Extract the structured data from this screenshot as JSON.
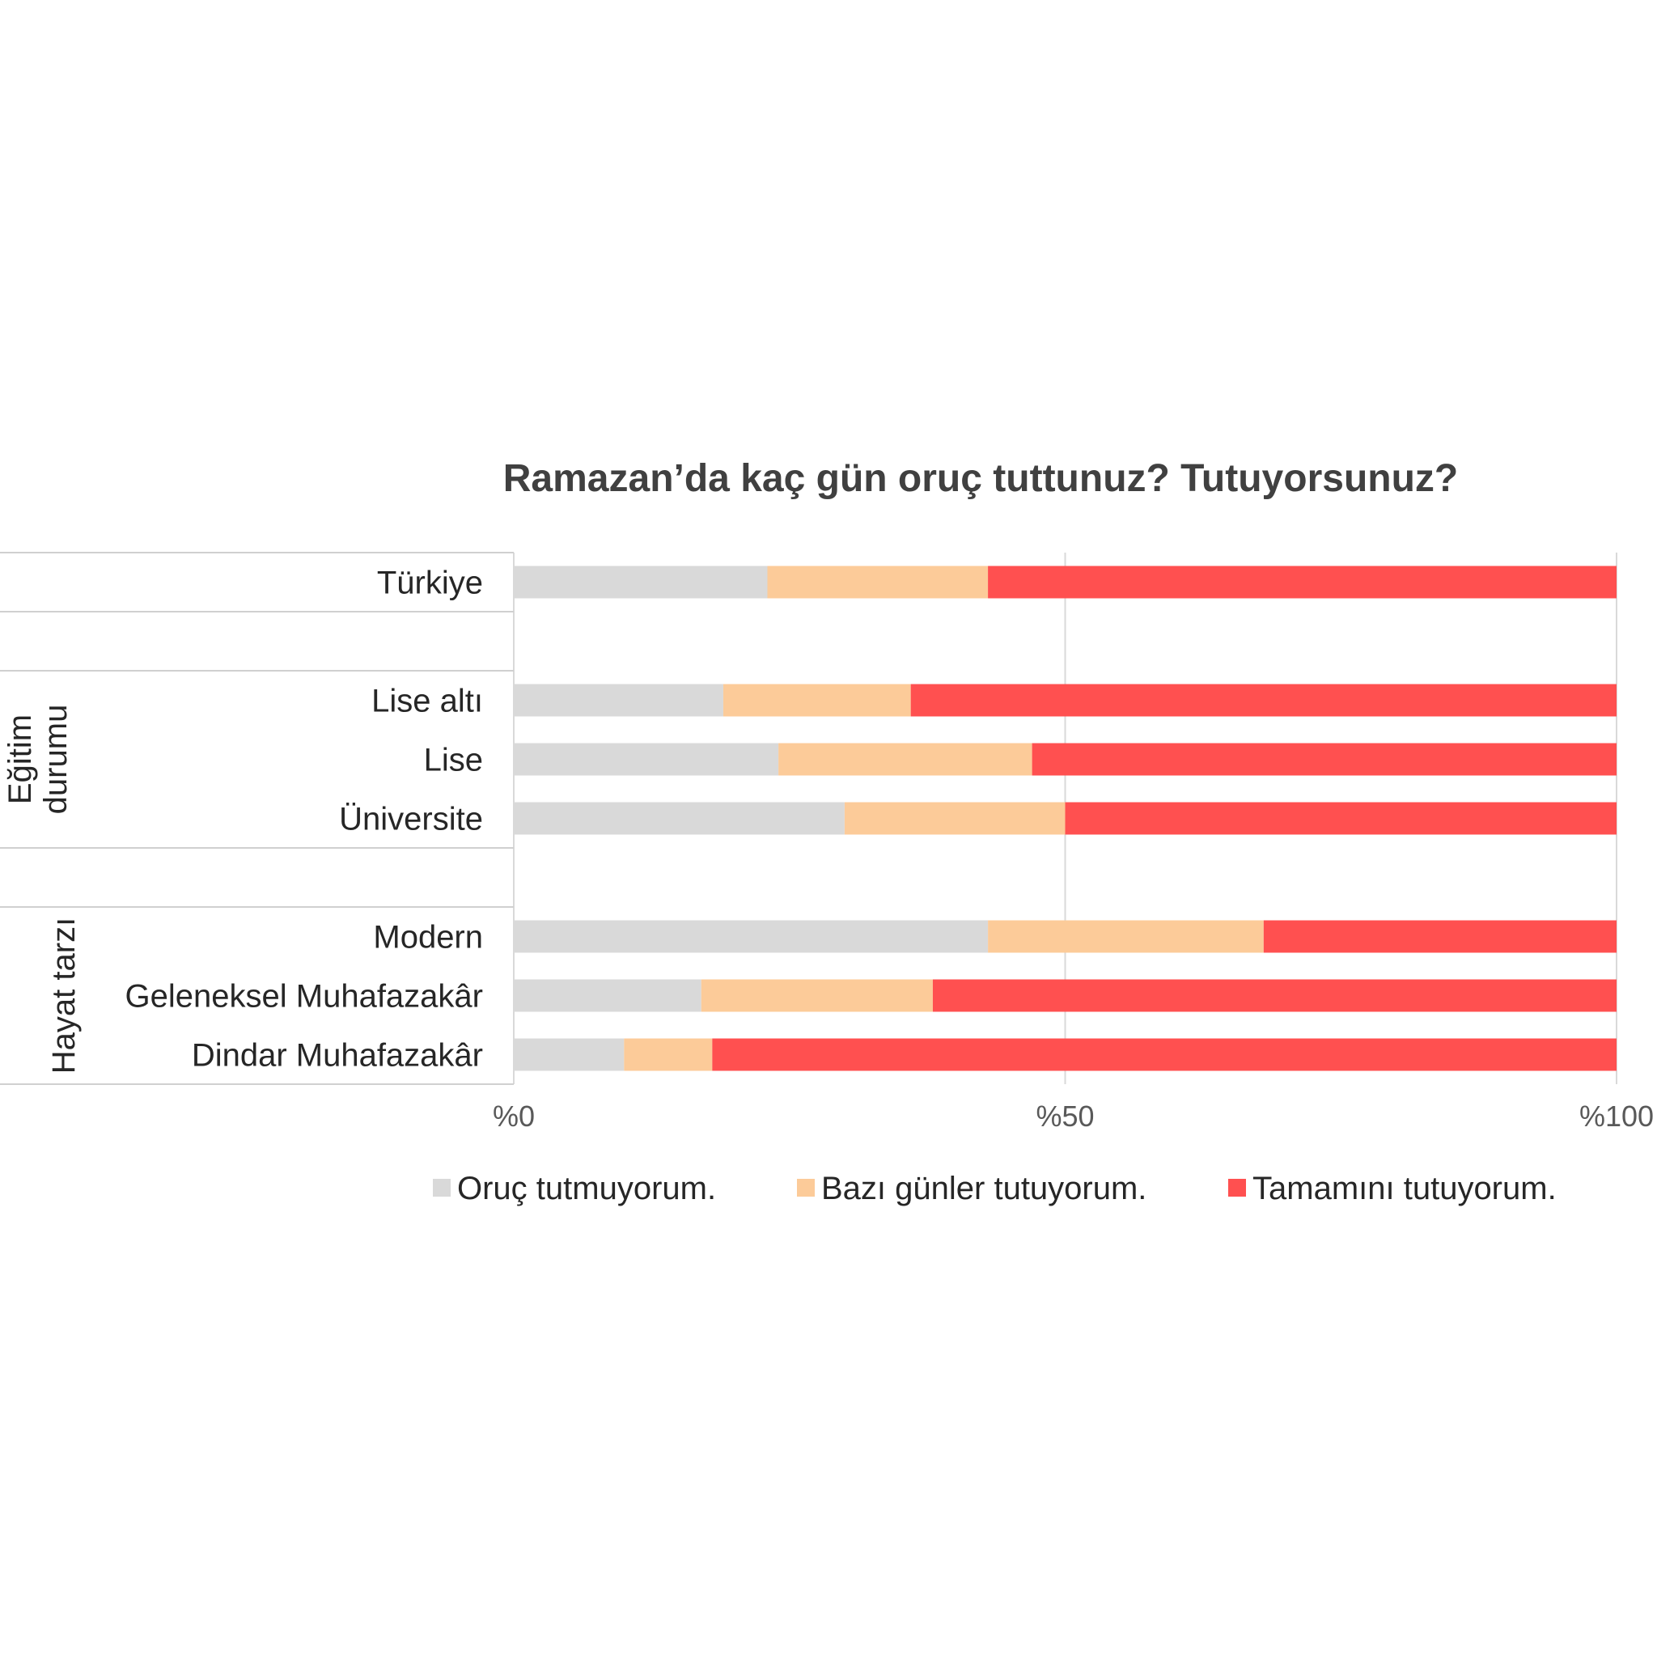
{
  "chart_data": {
    "type": "bar",
    "orientation": "horizontal",
    "stacked": "percent",
    "title": "Ramazan’da kaç gün oruç tuttunuz? Tutuyorsunuz?",
    "xlabel": "",
    "ylabel": "",
    "xlim": [
      0,
      100
    ],
    "x_ticks": [
      "%0",
      "%50",
      "%100"
    ],
    "grid": true,
    "legend_position": "bottom",
    "groups": [
      {
        "label": "",
        "categories": [
          "Türkiye"
        ]
      },
      {
        "label": "Eğitim durumu",
        "label_lines": [
          "Eğitim",
          "durumu"
        ],
        "categories": [
          "Lise altı",
          "Lise",
          "Üniversite"
        ]
      },
      {
        "label": "Hayat tarzı",
        "label_lines": [
          "Hayat tarzı"
        ],
        "categories": [
          "Modern",
          "Geleneksel Muhafazakâr",
          "Dindar Muhafazakâr"
        ]
      }
    ],
    "categories": [
      "Türkiye",
      "Lise altı",
      "Lise",
      "Üniversite",
      "Modern",
      "Geleneksel Muhafazakâr",
      "Dindar Muhafazakâr"
    ],
    "series": [
      {
        "name": "Oruç tutmuyorum.",
        "color": "#d9d9d9",
        "values": [
          23,
          19,
          24,
          30,
          43,
          17,
          10
        ]
      },
      {
        "name": "Bazı günler tutuyorum.",
        "color": "#fccb99",
        "values": [
          20,
          17,
          23,
          20,
          25,
          21,
          8
        ]
      },
      {
        "name": "Tamamını tutuyorum.",
        "color": "#ff5050",
        "values": [
          57,
          64,
          53,
          50,
          32,
          62,
          82
        ]
      }
    ]
  }
}
